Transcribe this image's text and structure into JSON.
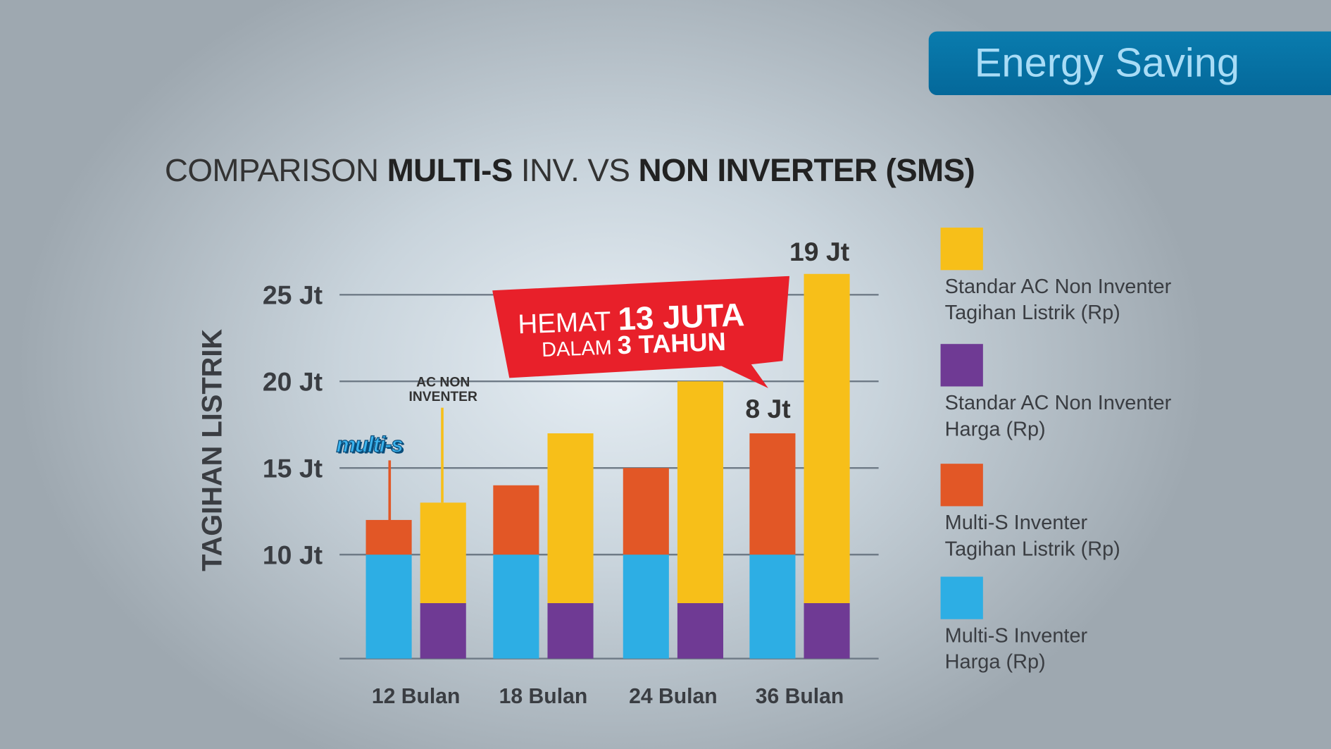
{
  "banner": {
    "label": "Energy Saving"
  },
  "title": {
    "part1": "COMPARISON ",
    "part2": "MULTI-S",
    "part3": " INV. VS ",
    "part4": "NON INVERTER (SMS)"
  },
  "callout": {
    "hemat": "HEMAT ",
    "amount": "13 JUTA",
    "dalam": "DALAM ",
    "period": "3 TAHUN"
  },
  "annotations": {
    "multi_s_logo": "multi-s",
    "ac_non_inverter_line1": "AC NON",
    "ac_non_inverter_line2": "INVENTER",
    "eight_jt": "8 Jt",
    "nineteen_jt": "19 Jt"
  },
  "legend": [
    {
      "line1": "Standar AC Non Inventer",
      "line2": "Tagihan Listrik (Rp)",
      "color": "#f7bf19"
    },
    {
      "line1": "Standar AC Non Inventer",
      "line2": "Harga (Rp)",
      "color": "#6f3a94"
    },
    {
      "line1": "Multi-S Inventer",
      "line2": "Tagihan Listrik (Rp)",
      "color": "#e25726"
    },
    {
      "line1": "Multi-S Inventer",
      "line2": "Harga (Rp)",
      "color": "#2daee4"
    }
  ],
  "chart_data": {
    "type": "bar",
    "stacked": true,
    "title": "COMPARISON MULTI-S INV. VS NON INVERTER (SMS)",
    "ylabel": "TAGIHAN LISTRIK",
    "xlabel": "",
    "categories": [
      "12 Bulan",
      "18 Bulan",
      "24 Bulan",
      "36 Bulan"
    ],
    "yticks": [
      {
        "value": 10,
        "label": "10 Jt"
      },
      {
        "value": 15,
        "label": "15 Jt"
      },
      {
        "value": 20,
        "label": "20 Jt"
      },
      {
        "value": 25,
        "label": "25 Jt"
      }
    ],
    "ylim": [
      4,
      27
    ],
    "grid": true,
    "legend_position": "right",
    "groups": [
      {
        "name": "Multi-S Inventer",
        "segments": [
          {
            "name": "Multi-S Inventer Harga (Rp)",
            "color": "#2daee4",
            "from": [
              4,
              4,
              4,
              4
            ],
            "to": [
              10,
              10,
              10,
              10
            ]
          },
          {
            "name": "Multi-S Inventer Tagihan Listrik (Rp)",
            "color": "#e25726",
            "from": [
              10,
              10,
              10,
              10
            ],
            "to": [
              12,
              14,
              15,
              17
            ]
          }
        ]
      },
      {
        "name": "Standar AC Non Inventer",
        "segments": [
          {
            "name": "Standar AC Non Inventer Harga (Rp)",
            "color": "#6f3a94",
            "from": [
              4,
              4,
              4,
              4
            ],
            "to": [
              7.2,
              7.2,
              7.2,
              7.2
            ]
          },
          {
            "name": "Standar AC Non Inventer Tagihan Listrik (Rp)",
            "color": "#f7bf19",
            "from": [
              7.2,
              7.2,
              7.2,
              7.2
            ],
            "to": [
              13,
              17,
              20,
              26.2
            ]
          }
        ]
      }
    ]
  }
}
